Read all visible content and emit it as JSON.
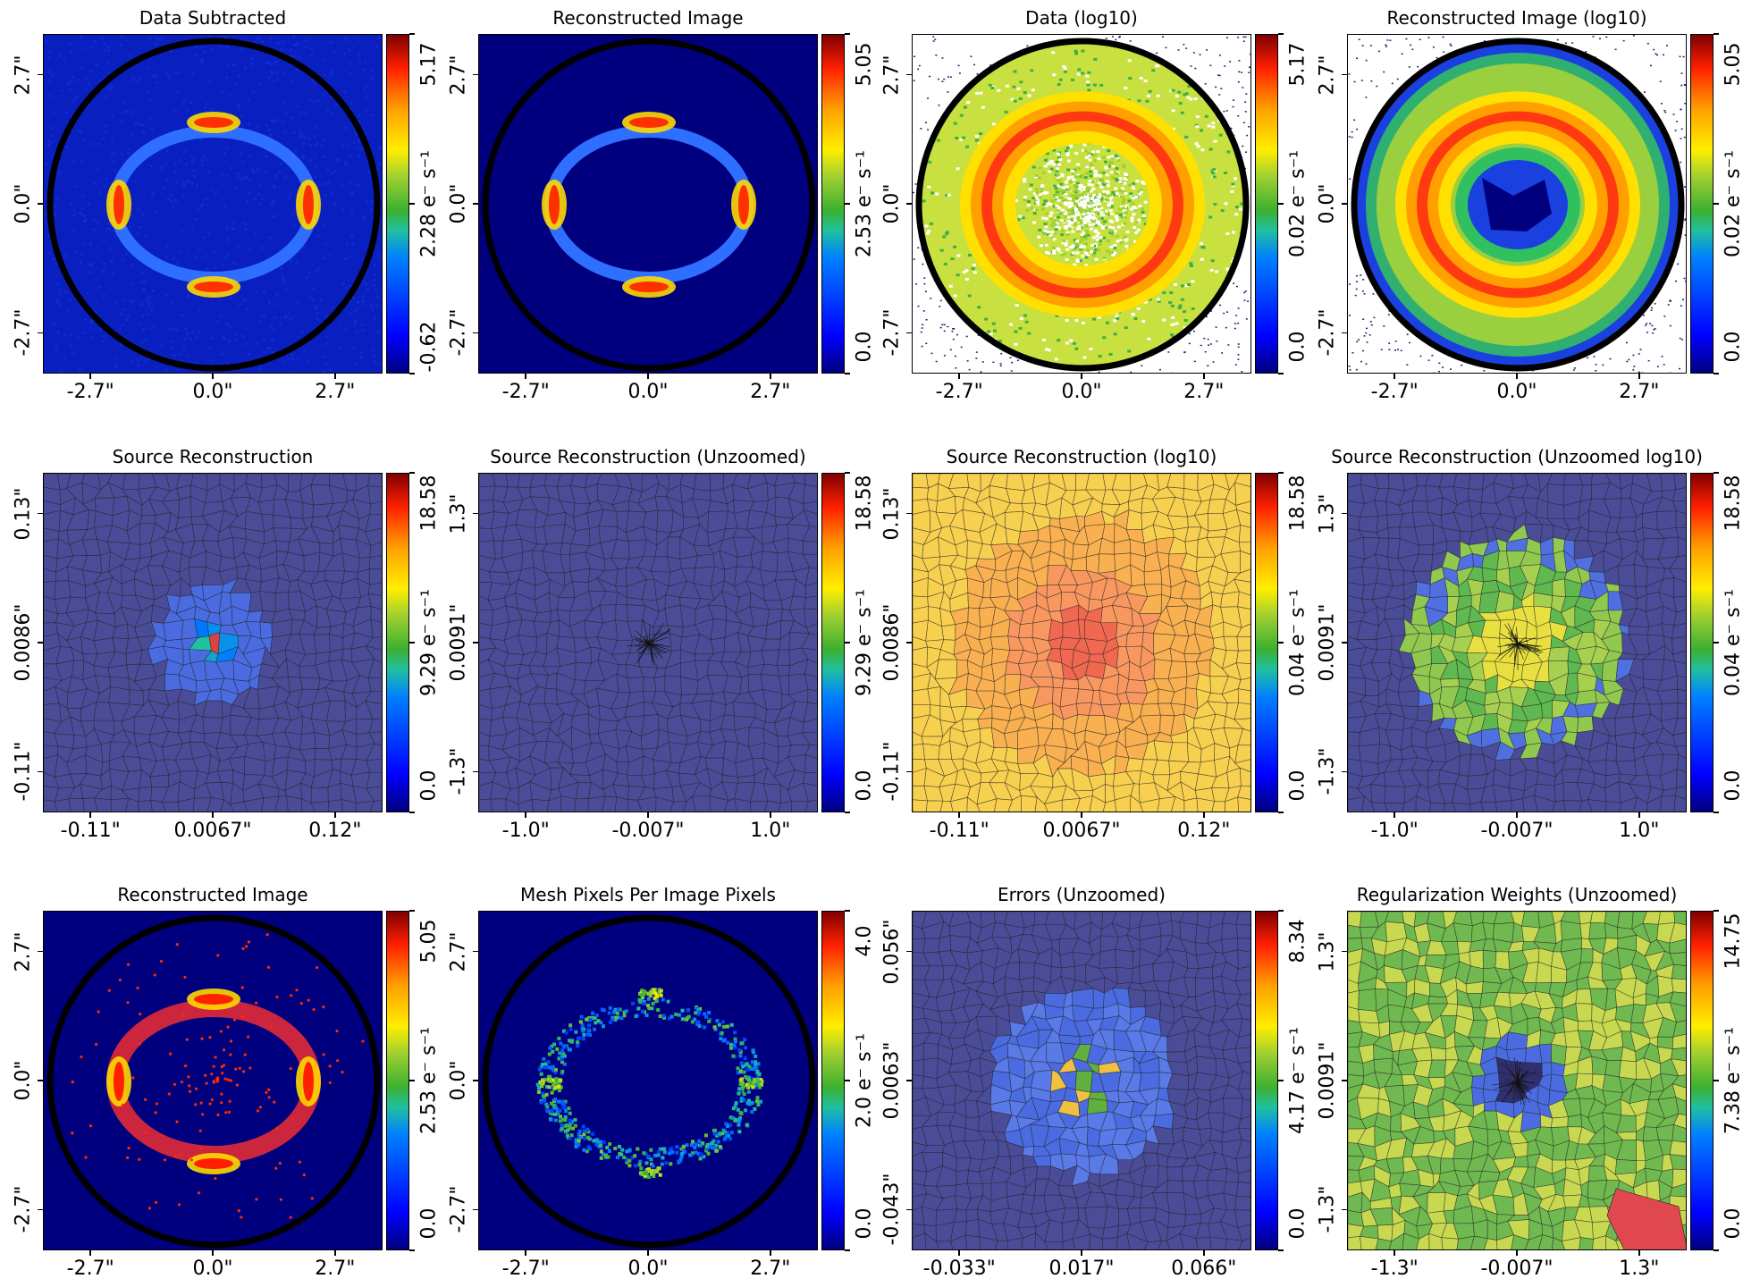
{
  "panels": [
    {
      "title": "Data Subtracted",
      "kind": "ring-data",
      "xticks": [
        "-2.7\"",
        "0.0\"",
        "2.7\""
      ],
      "yticks": [
        "2.7\"",
        "0.0\"",
        "-2.7\""
      ],
      "cbar": [
        "5.17",
        "2.28 e$^{-}$ s$^{-1}$",
        "-0.62"
      ],
      "cbar_text": [
        "5.17",
        "2.28 e⁻ s⁻¹",
        "-0.62"
      ]
    },
    {
      "title": "Reconstructed Image",
      "kind": "ring-model",
      "xticks": [
        "-2.7\"",
        "0.0\"",
        "2.7\""
      ],
      "yticks": [
        "2.7\"",
        "0.0\"",
        "-2.7\""
      ],
      "cbar_text": [
        "5.05",
        "2.53 e⁻ s⁻¹",
        "0.0"
      ]
    },
    {
      "title": "Data (log10)",
      "kind": "ring-log",
      "xticks": [
        "-2.7\"",
        "0.0\"",
        "2.7\""
      ],
      "yticks": [
        "2.7\"",
        "0.0\"",
        "-2.7\""
      ],
      "cbar_text": [
        "5.17",
        "0.02 e⁻ s⁻¹",
        "0.0"
      ]
    },
    {
      "title": "Reconstructed Image (log10)",
      "kind": "ring-log-model",
      "xticks": [
        "-2.7\"",
        "0.0\"",
        "2.7\""
      ],
      "yticks": [
        "2.7\"",
        "0.0\"",
        "-2.7\""
      ],
      "cbar_text": [
        "5.05",
        "0.02 e⁻ s⁻¹",
        "0.0"
      ]
    },
    {
      "title": "Source Reconstruction",
      "kind": "mesh-blue-center",
      "xticks": [
        "-0.11\"",
        "0.0067\"",
        "0.12\""
      ],
      "yticks": [
        "0.13\"",
        "0.0086\"",
        "-0.11\""
      ],
      "cbar_text": [
        "18.58",
        "9.29 e⁻ s⁻¹",
        "0.0"
      ]
    },
    {
      "title": "Source Reconstruction (Unzoomed)",
      "kind": "mesh-blue-sparse",
      "xticks": [
        "-1.0\"",
        "-0.007\"",
        "1.0\""
      ],
      "yticks": [
        "1.3\"",
        "0.0091\"",
        "-1.3\""
      ],
      "cbar_text": [
        "18.58",
        "9.29 e⁻ s⁻¹",
        "0.0"
      ]
    },
    {
      "title": "Source Reconstruction (log10)",
      "kind": "mesh-orange",
      "xticks": [
        "-0.11\"",
        "0.0067\"",
        "0.12\""
      ],
      "yticks": [
        "0.13\"",
        "0.0086\"",
        "-0.11\""
      ],
      "cbar_text": [
        "18.58",
        "0.04 e⁻ s⁻¹",
        "0.0"
      ]
    },
    {
      "title": "Source Reconstruction (Unzoomed log10)",
      "kind": "mesh-green-log",
      "xticks": [
        "-1.0\"",
        "-0.007\"",
        "1.0\""
      ],
      "yticks": [
        "1.3\"",
        "0.0091\"",
        "-1.3\""
      ],
      "cbar_text": [
        "18.58",
        "0.04 e⁻ s⁻¹",
        "0.0"
      ]
    },
    {
      "title": "Reconstructed Image",
      "kind": "ring-dots",
      "xticks": [
        "-2.7\"",
        "0.0\"",
        "2.7\""
      ],
      "yticks": [
        "2.7\"",
        "0.0\"",
        "-2.7\""
      ],
      "cbar_text": [
        "5.05",
        "2.53 e⁻ s⁻¹",
        "0.0"
      ]
    },
    {
      "title": "Mesh Pixels Per Image Pixels",
      "kind": "ring-sparse",
      "xticks": [
        "-2.7\"",
        "0.0\"",
        "2.7\""
      ],
      "yticks": [
        "2.7\"",
        "0.0\"",
        "-2.7\""
      ],
      "cbar_text": [
        "4.0",
        "2.0 e⁻ s⁻¹",
        "0.0"
      ]
    },
    {
      "title": "Errors (Unzoomed)",
      "kind": "mesh-errors",
      "xticks": [
        "-0.033\"",
        "0.017\"",
        "0.066\""
      ],
      "yticks": [
        "0.056\"",
        "0.0063\"",
        "-0.043\""
      ],
      "cbar_text": [
        "8.34",
        "4.17 e⁻ s⁻¹",
        "0.0"
      ]
    },
    {
      "title": "Regularization Weights (Unzoomed)",
      "kind": "mesh-weights",
      "xticks": [
        "-1.3\"",
        "-0.007\"",
        "1.3\""
      ],
      "yticks": [
        "1.3\"",
        "0.0091\"",
        "-1.3\""
      ],
      "cbar_text": [
        "14.75",
        "7.38 e⁻ s⁻¹",
        "0.0"
      ]
    }
  ],
  "chart_data": [
    {
      "type": "heatmap",
      "title": "Data Subtracted",
      "colorbar": {
        "min": -0.62,
        "mid": 2.28,
        "max": 5.17,
        "unit": "e⁻ s⁻¹"
      }
    },
    {
      "type": "heatmap",
      "title": "Reconstructed Image",
      "colorbar": {
        "min": 0.0,
        "mid": 2.53,
        "max": 5.05,
        "unit": "e⁻ s⁻¹"
      }
    },
    {
      "type": "heatmap",
      "title": "Data (log10)",
      "colorbar": {
        "min": 0.0,
        "mid": 0.02,
        "max": 5.17,
        "unit": "e⁻ s⁻¹",
        "scale": "log"
      }
    },
    {
      "type": "heatmap",
      "title": "Reconstructed Image (log10)",
      "colorbar": {
        "min": 0.0,
        "mid": 0.02,
        "max": 5.05,
        "unit": "e⁻ s⁻¹",
        "scale": "log"
      }
    },
    {
      "type": "heatmap",
      "title": "Source Reconstruction",
      "colorbar": {
        "min": 0.0,
        "mid": 9.29,
        "max": 18.58,
        "unit": "e⁻ s⁻¹"
      }
    },
    {
      "type": "heatmap",
      "title": "Source Reconstruction (Unzoomed)",
      "colorbar": {
        "min": 0.0,
        "mid": 9.29,
        "max": 18.58,
        "unit": "e⁻ s⁻¹"
      }
    },
    {
      "type": "heatmap",
      "title": "Source Reconstruction (log10)",
      "colorbar": {
        "min": 0.0,
        "mid": 0.04,
        "max": 18.58,
        "unit": "e⁻ s⁻¹",
        "scale": "log"
      }
    },
    {
      "type": "heatmap",
      "title": "Source Reconstruction (Unzoomed log10)",
      "colorbar": {
        "min": 0.0,
        "mid": 0.04,
        "max": 18.58,
        "unit": "e⁻ s⁻¹",
        "scale": "log"
      }
    },
    {
      "type": "heatmap",
      "title": "Reconstructed Image",
      "colorbar": {
        "min": 0.0,
        "mid": 2.53,
        "max": 5.05,
        "unit": "e⁻ s⁻¹"
      }
    },
    {
      "type": "heatmap",
      "title": "Mesh Pixels Per Image Pixels",
      "colorbar": {
        "min": 0.0,
        "mid": 2.0,
        "max": 4.0,
        "unit": "e⁻ s⁻¹"
      }
    },
    {
      "type": "heatmap",
      "title": "Errors (Unzoomed)",
      "colorbar": {
        "min": 0.0,
        "mid": 4.17,
        "max": 8.34,
        "unit": "e⁻ s⁻¹"
      }
    },
    {
      "type": "heatmap",
      "title": "Regularization Weights (Unzoomed)",
      "colorbar": {
        "min": 0.0,
        "mid": 7.38,
        "max": 14.75,
        "unit": "e⁻ s⁻¹"
      }
    }
  ]
}
